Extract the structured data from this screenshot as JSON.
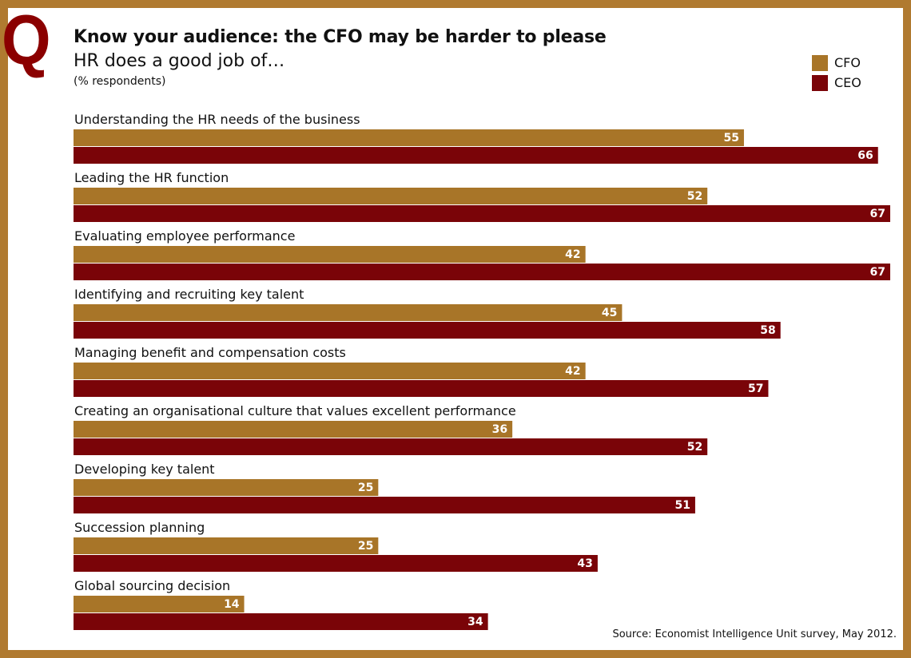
{
  "header": {
    "q_mark": "Q",
    "title": "Know your audience: the CFO may be harder to please",
    "subtitle": "HR does a good job of…",
    "unit": "(% respondents)"
  },
  "legend": [
    {
      "label": "CFO",
      "color": "#a87528"
    },
    {
      "label": "CEO",
      "color": "#7a0408"
    }
  ],
  "source": "Source: Economist Intelligence Unit survey, May 2012.",
  "colors": {
    "frame": "#b07a30",
    "cfo": "#a87528",
    "ceo": "#7a0408",
    "q_mark": "#8b0000"
  },
  "chart_data": {
    "type": "bar",
    "orientation": "horizontal",
    "categories": [
      "Understanding the HR needs of the business",
      "Leading the HR function",
      "Evaluating employee performance",
      "Identifying and recruiting key talent",
      "Managing benefit and compensation costs",
      "Creating an organisational culture that values excellent performance",
      "Developing key talent",
      "Succession planning",
      "Global sourcing decision"
    ],
    "series": [
      {
        "name": "CFO",
        "values": [
          55,
          52,
          42,
          45,
          42,
          36,
          25,
          25,
          14
        ]
      },
      {
        "name": "CEO",
        "values": [
          66,
          67,
          67,
          58,
          57,
          52,
          51,
          43,
          34
        ]
      }
    ],
    "xlim": [
      0,
      67
    ],
    "grid": false,
    "legend_position": "top-right",
    "data_labels": true
  }
}
